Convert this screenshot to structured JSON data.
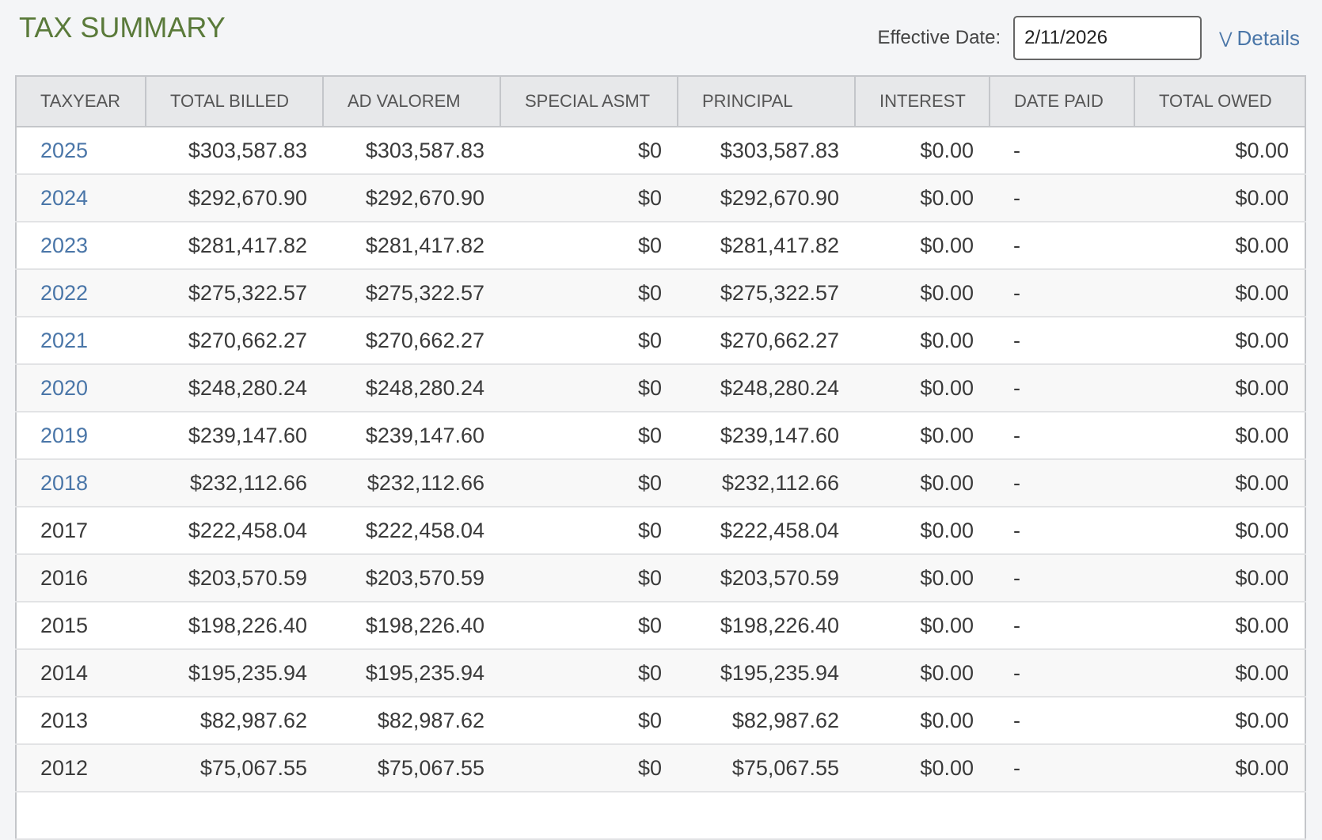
{
  "title": "TAX SUMMARY",
  "effective_date": {
    "label": "Effective Date:",
    "value": "2/11/2026"
  },
  "details": {
    "label": "Details",
    "icon": "double-chevron-down-icon"
  },
  "link_color": "#4a76a8",
  "title_color": "#5a7a3a",
  "columns": [
    "TAXYEAR",
    "TOTAL BILLED",
    "AD VALOREM",
    "SPECIAL ASMT",
    "PRINCIPAL",
    "INTEREST",
    "DATE PAID",
    "TOTAL OWED"
  ],
  "rows": [
    {
      "year": "2025",
      "link": true,
      "total_billed": "$303,587.83",
      "ad_valorem": "$303,587.83",
      "special_asmt": "$0",
      "principal": "$303,587.83",
      "interest": "$0.00",
      "date_paid": "-",
      "total_owed": "$0.00"
    },
    {
      "year": "2024",
      "link": true,
      "total_billed": "$292,670.90",
      "ad_valorem": "$292,670.90",
      "special_asmt": "$0",
      "principal": "$292,670.90",
      "interest": "$0.00",
      "date_paid": "-",
      "total_owed": "$0.00"
    },
    {
      "year": "2023",
      "link": true,
      "total_billed": "$281,417.82",
      "ad_valorem": "$281,417.82",
      "special_asmt": "$0",
      "principal": "$281,417.82",
      "interest": "$0.00",
      "date_paid": "-",
      "total_owed": "$0.00"
    },
    {
      "year": "2022",
      "link": true,
      "total_billed": "$275,322.57",
      "ad_valorem": "$275,322.57",
      "special_asmt": "$0",
      "principal": "$275,322.57",
      "interest": "$0.00",
      "date_paid": "-",
      "total_owed": "$0.00"
    },
    {
      "year": "2021",
      "link": true,
      "total_billed": "$270,662.27",
      "ad_valorem": "$270,662.27",
      "special_asmt": "$0",
      "principal": "$270,662.27",
      "interest": "$0.00",
      "date_paid": "-",
      "total_owed": "$0.00"
    },
    {
      "year": "2020",
      "link": true,
      "total_billed": "$248,280.24",
      "ad_valorem": "$248,280.24",
      "special_asmt": "$0",
      "principal": "$248,280.24",
      "interest": "$0.00",
      "date_paid": "-",
      "total_owed": "$0.00"
    },
    {
      "year": "2019",
      "link": true,
      "total_billed": "$239,147.60",
      "ad_valorem": "$239,147.60",
      "special_asmt": "$0",
      "principal": "$239,147.60",
      "interest": "$0.00",
      "date_paid": "-",
      "total_owed": "$0.00"
    },
    {
      "year": "2018",
      "link": true,
      "total_billed": "$232,112.66",
      "ad_valorem": "$232,112.66",
      "special_asmt": "$0",
      "principal": "$232,112.66",
      "interest": "$0.00",
      "date_paid": "-",
      "total_owed": "$0.00"
    },
    {
      "year": "2017",
      "link": false,
      "total_billed": "$222,458.04",
      "ad_valorem": "$222,458.04",
      "special_asmt": "$0",
      "principal": "$222,458.04",
      "interest": "$0.00",
      "date_paid": "-",
      "total_owed": "$0.00"
    },
    {
      "year": "2016",
      "link": false,
      "total_billed": "$203,570.59",
      "ad_valorem": "$203,570.59",
      "special_asmt": "$0",
      "principal": "$203,570.59",
      "interest": "$0.00",
      "date_paid": "-",
      "total_owed": "$0.00"
    },
    {
      "year": "2015",
      "link": false,
      "total_billed": "$198,226.40",
      "ad_valorem": "$198,226.40",
      "special_asmt": "$0",
      "principal": "$198,226.40",
      "interest": "$0.00",
      "date_paid": "-",
      "total_owed": "$0.00"
    },
    {
      "year": "2014",
      "link": false,
      "total_billed": "$195,235.94",
      "ad_valorem": "$195,235.94",
      "special_asmt": "$0",
      "principal": "$195,235.94",
      "interest": "$0.00",
      "date_paid": "-",
      "total_owed": "$0.00"
    },
    {
      "year": "2013",
      "link": false,
      "total_billed": "$82,987.62",
      "ad_valorem": "$82,987.62",
      "special_asmt": "$0",
      "principal": "$82,987.62",
      "interest": "$0.00",
      "date_paid": "-",
      "total_owed": "$0.00"
    },
    {
      "year": "2012",
      "link": false,
      "total_billed": "$75,067.55",
      "ad_valorem": "$75,067.55",
      "special_asmt": "$0",
      "principal": "$75,067.55",
      "interest": "$0.00",
      "date_paid": "-",
      "total_owed": "$0.00"
    }
  ]
}
